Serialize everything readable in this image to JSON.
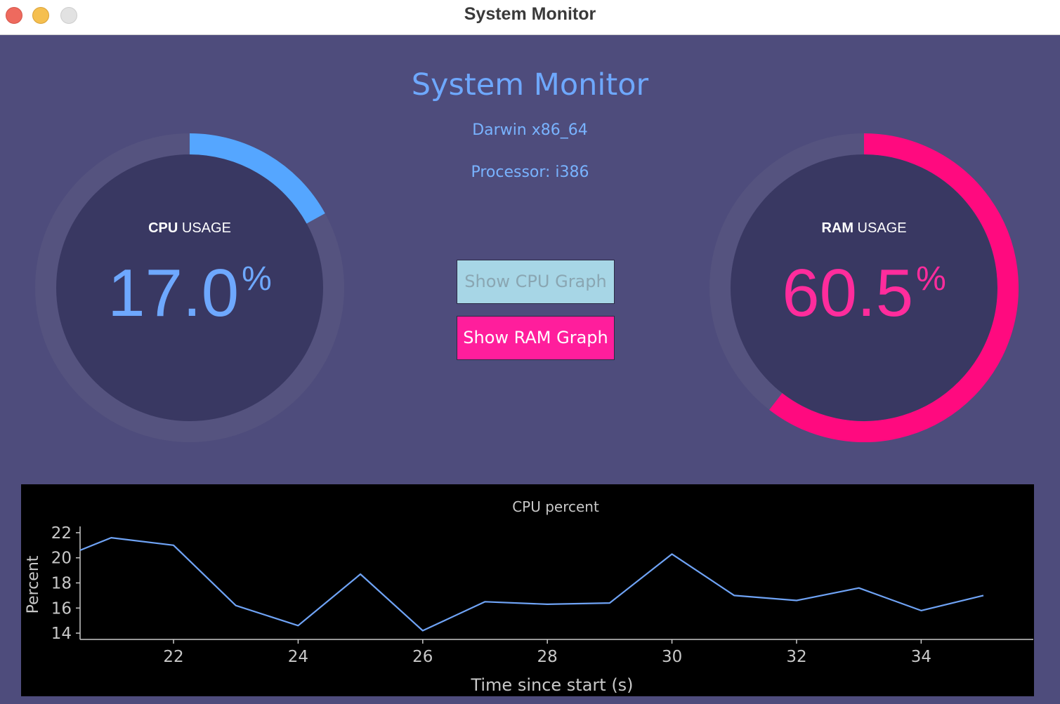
{
  "window": {
    "title": "System Monitor"
  },
  "app": {
    "title": "System Monitor",
    "os_line": "Darwin x86_64",
    "processor_line": "Processor: i386"
  },
  "gauges": {
    "cpu": {
      "label_bold": "CPU",
      "label_rest": " USAGE",
      "value": "17.0",
      "unit": "%",
      "percent": 17.0,
      "color": "#55a6ff"
    },
    "ram": {
      "label_bold": "RAM",
      "label_rest": " USAGE",
      "value": "60.5",
      "unit": "%",
      "percent": 60.5,
      "color": "#ff0a7f"
    }
  },
  "buttons": {
    "show_cpu_graph": "Show CPU Graph",
    "show_ram_graph": "Show RAM Graph"
  },
  "colors": {
    "background": "#4e4c7c",
    "gauge_track": "#55537f",
    "gauge_face": "#393862",
    "graph_line": "#6fa3f5"
  },
  "chart_data": {
    "type": "line",
    "title": "CPU percent",
    "xlabel": "Time since start (s)",
    "ylabel": "Percent",
    "xlim": [
      20.5,
      35.8
    ],
    "ylim": [
      13.5,
      22.5
    ],
    "xticks": [
      22,
      24,
      26,
      28,
      30,
      32,
      34
    ],
    "yticks": [
      14,
      16,
      18,
      20,
      22
    ],
    "grid": false,
    "series": [
      {
        "x": [
          20.5,
          21,
          22,
          23,
          24,
          25,
          26,
          27,
          28,
          29,
          30,
          31,
          32,
          33,
          34,
          35
        ],
        "y": [
          20.6,
          21.6,
          21.0,
          16.2,
          14.6,
          18.7,
          14.2,
          16.5,
          16.3,
          16.4,
          20.3,
          17.0,
          16.6,
          17.6,
          15.8,
          17.0
        ]
      }
    ]
  }
}
